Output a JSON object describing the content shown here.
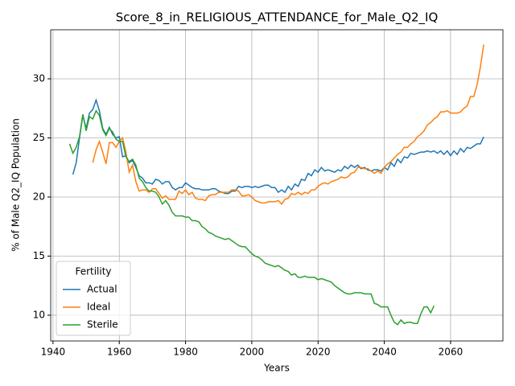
{
  "chart_data": {
    "type": "line",
    "title": "Score_8_in_RELIGIOUS_ATTENDANCE_for_Male_Q2_IQ",
    "x_label": "Years",
    "y_label": "% of Male Q2_IQ Population",
    "legend_title": "Fertility",
    "legend": "lower left",
    "grid": true,
    "xlim": [
      1939.3,
      2075.8
    ],
    "ylim": [
      7.82,
      34.15
    ],
    "xticks": [
      1940,
      1960,
      1980,
      2000,
      2020,
      2040,
      2060
    ],
    "yticks": [
      10,
      15,
      20,
      25,
      30
    ],
    "x": [
      1945,
      1946,
      1947,
      1948,
      1949,
      1950,
      1951,
      1952,
      1953,
      1954,
      1955,
      1956,
      1957,
      1958,
      1959,
      1960,
      1961,
      1962,
      1963,
      1964,
      1965,
      1966,
      1967,
      1968,
      1969,
      1970,
      1971,
      1972,
      1973,
      1974,
      1975,
      1976,
      1977,
      1978,
      1979,
      1980,
      1981,
      1982,
      1983,
      1984,
      1985,
      1986,
      1987,
      1988,
      1989,
      1990,
      1991,
      1992,
      1993,
      1994,
      1995,
      1996,
      1997,
      1998,
      1999,
      2000,
      2001,
      2002,
      2003,
      2004,
      2005,
      2006,
      2007,
      2008,
      2009,
      2010,
      2011,
      2012,
      2013,
      2014,
      2015,
      2016,
      2017,
      2018,
      2019,
      2020,
      2021,
      2022,
      2023,
      2024,
      2025,
      2026,
      2027,
      2028,
      2029,
      2030,
      2031,
      2032,
      2033,
      2034,
      2035,
      2036,
      2037,
      2038,
      2039,
      2040,
      2041,
      2042,
      2043,
      2044,
      2045,
      2046,
      2047,
      2048,
      2049,
      2050,
      2051,
      2052,
      2053,
      2054,
      2055,
      2056,
      2057,
      2058,
      2059,
      2060,
      2061,
      2062,
      2063,
      2064,
      2065,
      2066,
      2067,
      2068,
      2069,
      2070
    ],
    "series": [
      {
        "name": "Actual",
        "color": "#1f77b4",
        "values": [
          null,
          21.9,
          22.9,
          25.0,
          26.9,
          25.8,
          27.1,
          27.4,
          28.2,
          27.3,
          25.8,
          25.3,
          25.9,
          25.3,
          25.0,
          25.1,
          23.4,
          23.5,
          22.9,
          23.1,
          22.5,
          21.8,
          21.6,
          21.2,
          21.2,
          21.1,
          21.5,
          21.4,
          21.1,
          21.3,
          21.3,
          20.8,
          20.6,
          20.8,
          20.8,
          21.2,
          21.0,
          20.8,
          20.7,
          20.7,
          20.6,
          20.6,
          20.6,
          20.7,
          20.7,
          20.5,
          20.4,
          20.3,
          20.3,
          20.5,
          20.5,
          20.9,
          20.8,
          20.9,
          20.9,
          20.8,
          20.9,
          20.8,
          20.9,
          21.0,
          21.0,
          20.8,
          20.8,
          20.4,
          20.6,
          20.4,
          20.9,
          20.6,
          21.1,
          20.9,
          21.5,
          21.4,
          22.0,
          21.8,
          22.3,
          22.1,
          22.5,
          22.2,
          22.3,
          22.2,
          22.1,
          22.3,
          22.2,
          22.6,
          22.4,
          22.7,
          22.5,
          22.7,
          22.4,
          22.5,
          22.3,
          22.2,
          22.3,
          22.3,
          22.2,
          22.5,
          22.3,
          22.9,
          22.6,
          23.2,
          22.9,
          23.4,
          23.3,
          23.7,
          23.6,
          23.7,
          23.8,
          23.8,
          23.9,
          23.8,
          23.9,
          23.7,
          23.9,
          23.6,
          23.9,
          23.5,
          23.9,
          23.6,
          24.1,
          23.8,
          24.2,
          24.1,
          24.3,
          24.5,
          24.5,
          25.1
        ]
      },
      {
        "name": "Ideal",
        "color": "#ff7f0e",
        "values": [
          null,
          null,
          null,
          null,
          null,
          null,
          null,
          22.9,
          24.0,
          24.7,
          23.8,
          22.8,
          24.6,
          24.6,
          24.2,
          24.7,
          25.0,
          23.8,
          22.1,
          22.7,
          21.3,
          20.5,
          20.6,
          20.6,
          20.4,
          20.7,
          20.7,
          20.3,
          19.9,
          20.1,
          19.8,
          19.8,
          19.8,
          20.5,
          20.3,
          20.6,
          20.2,
          20.4,
          19.9,
          19.8,
          19.8,
          19.7,
          20.1,
          20.2,
          20.2,
          20.4,
          20.4,
          20.4,
          20.4,
          20.6,
          20.6,
          20.5,
          20.1,
          20.1,
          20.2,
          20.0,
          19.7,
          19.6,
          19.5,
          19.5,
          19.6,
          19.6,
          19.6,
          19.7,
          19.4,
          19.8,
          19.9,
          20.3,
          20.2,
          20.4,
          20.2,
          20.4,
          20.3,
          20.6,
          20.6,
          20.9,
          21.1,
          21.2,
          21.1,
          21.3,
          21.4,
          21.5,
          21.7,
          21.6,
          21.7,
          22.0,
          22.1,
          22.5,
          22.5,
          22.4,
          22.4,
          22.2,
          22.0,
          22.2,
          22.0,
          22.5,
          22.8,
          23.0,
          23.3,
          23.6,
          23.8,
          24.2,
          24.2,
          24.5,
          24.7,
          25.1,
          25.3,
          25.6,
          26.1,
          26.3,
          26.6,
          26.8,
          27.2,
          27.2,
          27.3,
          27.1,
          27.1,
          27.1,
          27.2,
          27.5,
          27.7,
          28.5,
          28.5,
          29.5,
          31.0,
          32.9
        ]
      },
      {
        "name": "Sterile",
        "color": "#2ca02c",
        "values": [
          24.5,
          23.7,
          24.2,
          25.1,
          27.0,
          25.6,
          26.8,
          26.6,
          27.3,
          26.9,
          25.7,
          25.2,
          25.8,
          25.5,
          24.9,
          24.7,
          24.7,
          23.4,
          23.0,
          23.2,
          22.7,
          21.6,
          21.3,
          20.8,
          20.5,
          20.5,
          20.4,
          20.0,
          19.4,
          19.7,
          19.3,
          18.7,
          18.4,
          18.4,
          18.4,
          18.3,
          18.3,
          18.0,
          18.0,
          17.9,
          17.5,
          17.3,
          17.0,
          16.9,
          16.7,
          16.6,
          16.5,
          16.4,
          16.5,
          16.3,
          16.1,
          15.9,
          15.8,
          15.8,
          15.5,
          15.2,
          15.0,
          14.9,
          14.7,
          14.4,
          14.3,
          14.2,
          14.1,
          14.2,
          14.0,
          13.8,
          13.7,
          13.4,
          13.5,
          13.2,
          13.2,
          13.3,
          13.2,
          13.2,
          13.2,
          13.0,
          13.1,
          13.0,
          12.9,
          12.8,
          12.5,
          12.3,
          12.1,
          11.9,
          11.8,
          11.8,
          11.9,
          11.9,
          11.9,
          11.8,
          11.8,
          11.8,
          11.0,
          10.9,
          10.7,
          10.7,
          10.7,
          10.0,
          9.4,
          9.2,
          9.6,
          9.3,
          9.4,
          9.4,
          9.3,
          9.3,
          10.1,
          10.7,
          10.7,
          10.2,
          10.8,
          null,
          null,
          null,
          null,
          null,
          null,
          null,
          null,
          null,
          null,
          null,
          null,
          null,
          null,
          null
        ]
      }
    ]
  }
}
